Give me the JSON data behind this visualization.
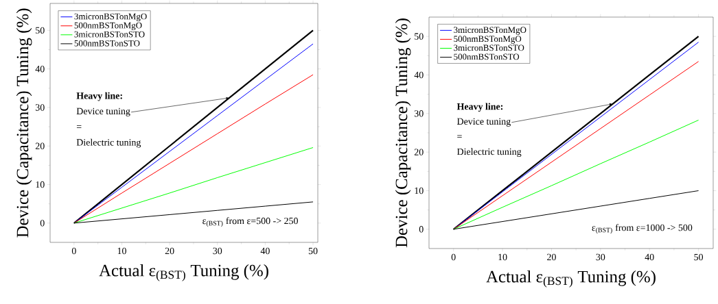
{
  "chart_data": [
    {
      "type": "line",
      "xlabel": "Actual ε$_{(BST)}$ Tuning (%)",
      "ylabel": "Device (Capacitance) Tuning (%)",
      "legend": "top left",
      "marker": "none",
      "x": [
        0,
        10,
        20,
        30,
        40,
        50
      ],
      "xlim": [
        -5,
        51
      ],
      "ylim": [
        -5,
        57
      ],
      "xticks": [
        0,
        10,
        20,
        30,
        40,
        50
      ],
      "yticks": [
        0,
        10,
        20,
        30,
        40,
        50
      ],
      "series": [
        {
          "color": "#000000",
          "values": [
            0,
            10,
            20,
            30,
            40,
            50
          ]
        },
        {
          "name": "3micronBSTonMgO",
          "color": "#0000ff",
          "values": [
            0,
            9.3,
            18.6,
            27.9,
            37.2,
            46.5
          ]
        },
        {
          "name": "500nmBSTonMgO",
          "color": "#ff0000",
          "values": [
            0,
            7.8,
            15.5,
            23.2,
            30.9,
            38.5
          ]
        },
        {
          "name": "3micronBSTonSTO",
          "color": "#00ff00",
          "values": [
            0,
            3.9,
            7.8,
            11.8,
            15.7,
            19.6
          ]
        },
        {
          "name": "500nmBSTonSTO",
          "color": "#000000",
          "values": [
            0,
            1.1,
            2.2,
            3.3,
            4.4,
            5.5
          ]
        }
      ],
      "annotations": [
        "**Heavy line:**",
        {
          "text": "Device tuning",
          "x": 32.5,
          "y": 32.5
        },
        "=",
        "Dielectric tuning",
        "ε$_{(BST)}$ from ε=500 -> 250"
      ]
    },
    {
      "type": "line",
      "xlabel": "Actual ε$_{(BST)}$ Tuning (%)",
      "ylabel": "Device (Capacitance) Tuning (%)",
      "legend": "top left",
      "marker": "none",
      "x": [
        0,
        10,
        20,
        30,
        40,
        50
      ],
      "xlim": [
        -5,
        53
      ],
      "ylim": [
        -5,
        55
      ],
      "xticks": [
        0,
        10,
        20,
        30,
        40,
        50
      ],
      "yticks": [
        0,
        10,
        20,
        30,
        40,
        50
      ],
      "series": [
        {
          "color": "#000000",
          "values": [
            0,
            10,
            20,
            30,
            40,
            50
          ]
        },
        {
          "name": "3micronBSTonMgO",
          "color": "#0000ff",
          "values": [
            0,
            9.7,
            19.4,
            29.1,
            38.8,
            48.5
          ]
        },
        {
          "name": "500nmBSTonMgO",
          "color": "#ff0000",
          "values": [
            0,
            8.7,
            17.4,
            26.1,
            34.8,
            43.5
          ]
        },
        {
          "name": "3micronBSTonSTO",
          "color": "#00ff00",
          "values": [
            0,
            5.7,
            11.3,
            17,
            22.6,
            28.3
          ]
        },
        {
          "name": "500nmBSTonSTO",
          "color": "#000000",
          "values": [
            0,
            2,
            4,
            6,
            8,
            10
          ]
        }
      ],
      "annotations": [
        "**Heavy line:**",
        {
          "text": "Device tuning",
          "x": 32.5,
          "y": 32.5
        },
        "=",
        "Dielectric tuning",
        "ε$_{(BST)}$ from ε=1000 -> 500"
      ]
    }
  ]
}
